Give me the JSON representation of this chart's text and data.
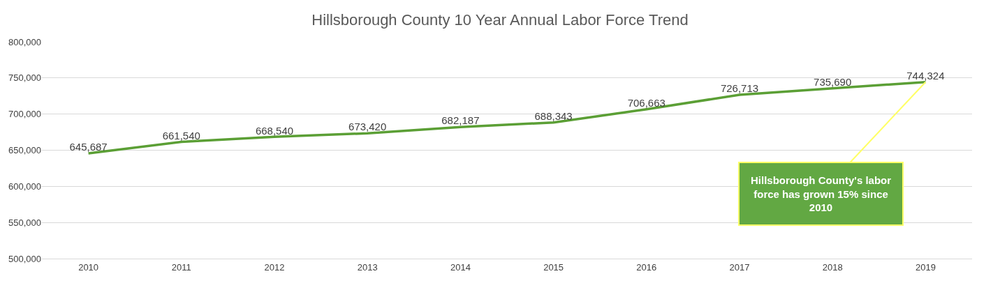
{
  "chart_data": {
    "type": "line",
    "title": "Hillsborough County 10 Year Annual Labor Force Trend",
    "categories": [
      "2010",
      "2011",
      "2012",
      "2013",
      "2014",
      "2015",
      "2016",
      "2017",
      "2018",
      "2019"
    ],
    "series": [
      {
        "color": "#5b9f35",
        "values": [
          645687,
          661540,
          668540,
          673420,
          682187,
          688343,
          706663,
          726713,
          735690,
          744324
        ],
        "value_labels": [
          "645,687",
          "661,540",
          "668,540",
          "673,420",
          "682,187",
          "688,343",
          "706,663",
          "726,713",
          "735,690",
          "744,324"
        ]
      }
    ],
    "ylim": [
      500000,
      800000
    ],
    "yticks": [
      {
        "value": 500000,
        "label": "500,000"
      },
      {
        "value": 550000,
        "label": "550,000"
      },
      {
        "value": 600000,
        "label": "600,000"
      },
      {
        "value": 650000,
        "label": "650,000"
      },
      {
        "value": 700000,
        "label": "700,000"
      },
      {
        "value": 750000,
        "label": "750,000"
      },
      {
        "value": 800000,
        "label": "800,000"
      }
    ],
    "grid": "y",
    "legend": false,
    "marker": "none",
    "line_style": "solid",
    "annotations": [
      {
        "text": "Hillsborough County's labor force has grown 15% since 2010",
        "x": "2019",
        "y": 744324
      }
    ]
  }
}
